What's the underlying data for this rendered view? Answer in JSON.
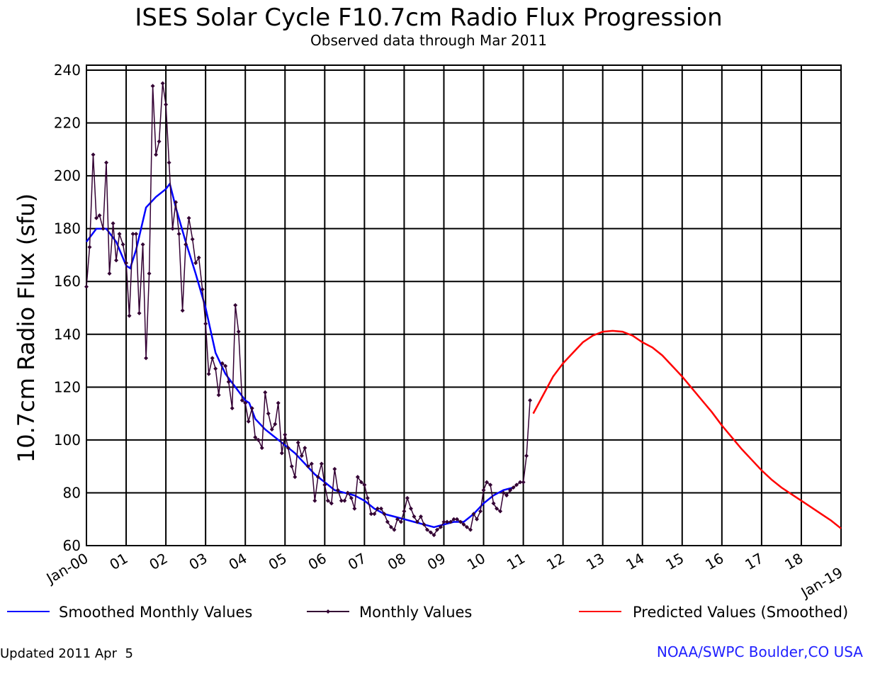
{
  "chart_data": {
    "type": "line",
    "title": "ISES Solar Cycle F10.7cm Radio Flux Progression",
    "subtitle": "Observed data through Mar 2011",
    "ylabel": "10.7cm Radio Flux (sfu)",
    "footer": "Updated 2011 Apr  5",
    "credit": "NOAA/SWPC Boulder,CO USA",
    "xlim": [
      2000,
      2019
    ],
    "xticks": [
      {
        "value": 2000,
        "label": "Jan-00"
      },
      {
        "value": 2001,
        "label": "01"
      },
      {
        "value": 2002,
        "label": "02"
      },
      {
        "value": 2003,
        "label": "03"
      },
      {
        "value": 2004,
        "label": "04"
      },
      {
        "value": 2005,
        "label": "05"
      },
      {
        "value": 2006,
        "label": "06"
      },
      {
        "value": 2007,
        "label": "07"
      },
      {
        "value": 2008,
        "label": "08"
      },
      {
        "value": 2009,
        "label": "09"
      },
      {
        "value": 2010,
        "label": "10"
      },
      {
        "value": 2011,
        "label": "11"
      },
      {
        "value": 2012,
        "label": "12"
      },
      {
        "value": 2013,
        "label": "13"
      },
      {
        "value": 2014,
        "label": "14"
      },
      {
        "value": 2015,
        "label": "15"
      },
      {
        "value": 2016,
        "label": "16"
      },
      {
        "value": 2017,
        "label": "17"
      },
      {
        "value": 2018,
        "label": "18"
      },
      {
        "value": 2019,
        "label": "Jan-19"
      }
    ],
    "ylim": [
      60,
      240
    ],
    "yticks": [
      60,
      80,
      100,
      120,
      140,
      160,
      180,
      200,
      220,
      240
    ],
    "grid": true,
    "legend": "bottom",
    "series": [
      {
        "name": "Smoothed Monthly Values",
        "color": "#0000ff",
        "x": [
          2000,
          2000.25,
          2000.5,
          2000.75,
          2001,
          2001.1,
          2001.25,
          2001.5,
          2001.75,
          2002,
          2002.1,
          2002.25,
          2002.5,
          2002.75,
          2003,
          2003.25,
          2003.5,
          2003.75,
          2004,
          2004.1,
          2004.25,
          2004.5,
          2004.75,
          2005,
          2005.25,
          2005.5,
          2005.75,
          2006,
          2006.25,
          2006.5,
          2006.75,
          2007,
          2007.25,
          2007.5,
          2007.75,
          2008,
          2008.25,
          2008.5,
          2008.75,
          2009,
          2009.25,
          2009.5,
          2009.75,
          2010,
          2010.25,
          2010.5,
          2010.75
        ],
        "values": [
          175,
          180,
          180,
          175,
          166,
          165,
          172,
          188,
          192,
          195,
          197,
          188,
          175,
          163,
          150,
          133,
          125,
          120,
          115,
          114,
          108,
          104,
          101,
          98,
          95,
          91,
          87,
          84,
          81,
          80,
          79,
          77,
          74,
          72,
          71,
          70,
          69,
          68,
          67,
          68,
          69,
          69,
          72,
          76,
          79,
          81,
          82
        ]
      },
      {
        "name": "Monthly Values",
        "color": "#330033",
        "marker": "diamond",
        "x": [
          2000,
          2000.08,
          2000.17,
          2000.25,
          2000.33,
          2000.42,
          2000.5,
          2000.58,
          2000.67,
          2000.75,
          2000.83,
          2000.92,
          2001,
          2001.08,
          2001.17,
          2001.25,
          2001.33,
          2001.42,
          2001.5,
          2001.58,
          2001.67,
          2001.75,
          2001.83,
          2001.92,
          2002,
          2002.08,
          2002.17,
          2002.25,
          2002.33,
          2002.42,
          2002.5,
          2002.58,
          2002.67,
          2002.75,
          2002.83,
          2002.92,
          2003,
          2003.08,
          2003.17,
          2003.25,
          2003.33,
          2003.42,
          2003.5,
          2003.58,
          2003.67,
          2003.75,
          2003.83,
          2003.92,
          2004,
          2004.08,
          2004.17,
          2004.25,
          2004.33,
          2004.42,
          2004.5,
          2004.58,
          2004.67,
          2004.75,
          2004.83,
          2004.92,
          2005,
          2005.08,
          2005.17,
          2005.25,
          2005.33,
          2005.42,
          2005.5,
          2005.58,
          2005.67,
          2005.75,
          2005.83,
          2005.92,
          2006,
          2006.08,
          2006.17,
          2006.25,
          2006.33,
          2006.42,
          2006.5,
          2006.58,
          2006.67,
          2006.75,
          2006.83,
          2006.92,
          2007,
          2007.08,
          2007.17,
          2007.25,
          2007.33,
          2007.42,
          2007.5,
          2007.58,
          2007.67,
          2007.75,
          2007.83,
          2007.92,
          2008,
          2008.08,
          2008.17,
          2008.25,
          2008.33,
          2008.42,
          2008.5,
          2008.58,
          2008.67,
          2008.75,
          2008.83,
          2008.92,
          2009,
          2009.08,
          2009.17,
          2009.25,
          2009.33,
          2009.42,
          2009.5,
          2009.58,
          2009.67,
          2009.75,
          2009.83,
          2009.92,
          2010,
          2010.08,
          2010.17,
          2010.25,
          2010.33,
          2010.42,
          2010.5,
          2010.58,
          2010.67,
          2010.75,
          2010.83,
          2010.92,
          2011,
          2011.08,
          2011.17
        ],
        "values": [
          158,
          173,
          208,
          184,
          185,
          180,
          205,
          163,
          182,
          168,
          178,
          174,
          167,
          147,
          178,
          178,
          148,
          174,
          131,
          163,
          234,
          208,
          213,
          235,
          227,
          205,
          180,
          190,
          178,
          149,
          174,
          184,
          176,
          167,
          169,
          157,
          144,
          125,
          131,
          127,
          117,
          129,
          128,
          122,
          112,
          151,
          141,
          115,
          114,
          107,
          112,
          101,
          100,
          97,
          118,
          110,
          104,
          106,
          114,
          95,
          102,
          97,
          90,
          86,
          99,
          94,
          97,
          90,
          91,
          77,
          86,
          91,
          83,
          77,
          76,
          89,
          81,
          77,
          77,
          80,
          78,
          74,
          86,
          84,
          83,
          78,
          72,
          72,
          74,
          74,
          72,
          69,
          67,
          66,
          70,
          69,
          73,
          78,
          74,
          71,
          69,
          71,
          68,
          66,
          65,
          64,
          66,
          67,
          69,
          69,
          69,
          70,
          70,
          69,
          68,
          67,
          66,
          72,
          70,
          73,
          81,
          84,
          83,
          76,
          74,
          73,
          80,
          79,
          81,
          82,
          83,
          84,
          84,
          94,
          115
        ]
      },
      {
        "name": "Predicted Values (Smoothed)",
        "color": "#ff0000",
        "x": [
          2011.25,
          2011.5,
          2011.75,
          2012,
          2012.25,
          2012.5,
          2012.75,
          2013,
          2013.25,
          2013.5,
          2013.75,
          2014,
          2014.25,
          2014.5,
          2014.75,
          2015,
          2015.25,
          2015.5,
          2015.75,
          2016,
          2016.25,
          2016.5,
          2016.75,
          2017,
          2017.25,
          2017.5,
          2017.75,
          2018,
          2018.25,
          2018.5,
          2018.75,
          2019
        ],
        "values": [
          110,
          117,
          124,
          129,
          133,
          137,
          139.5,
          141,
          141.3,
          141,
          139.5,
          137,
          135,
          132,
          128,
          124,
          119.5,
          115,
          110.5,
          105.5,
          101,
          96.5,
          92.5,
          88.5,
          85,
          82,
          79.5,
          77,
          74.5,
          72,
          69.5,
          66.5
        ]
      }
    ]
  }
}
